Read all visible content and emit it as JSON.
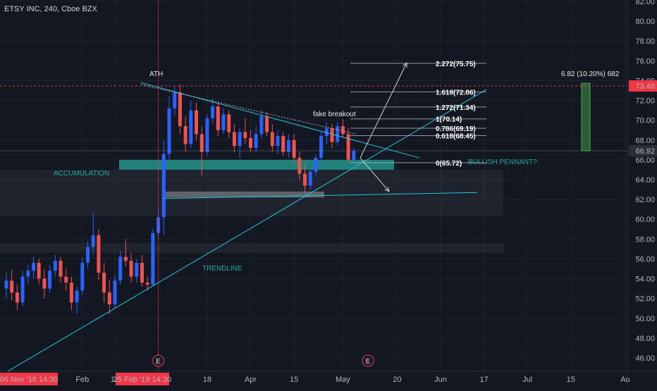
{
  "header": {
    "symbol_title": "ETSY INC, 240, Cboe BZX"
  },
  "colors": {
    "background": "#131722",
    "up_candle": "#2962ff",
    "down_candle": "#ef5350",
    "teal": "#26c6da",
    "zone_teal": "#26a69a",
    "zone_gray": "#787b86",
    "target_box": "#4caf50",
    "red_tag": "#f23645",
    "last_price_tag": "#2a2e39"
  },
  "chart_data": {
    "type": "candlestick",
    "y_axis": {
      "range": [
        45,
        82
      ],
      "ticks": [
        "82.00",
        "80.00",
        "78.00",
        "76.00",
        "74.00",
        "72.00",
        "70.00",
        "68.00",
        "66.00",
        "64.00",
        "62.00",
        "60.00",
        "58.00",
        "56.00",
        "54.00",
        "52.00",
        "50.00",
        "48.00",
        "46.00"
      ],
      "tick_values": [
        82,
        80,
        78,
        76,
        74,
        72,
        70,
        68,
        66,
        64,
        62,
        60,
        58,
        56,
        54,
        52,
        50,
        48,
        46
      ]
    },
    "x_axis": {
      "ticks": [
        "Feb",
        "18",
        "18",
        "Apr",
        "15",
        "May",
        "20",
        "Jun",
        "17",
        "Jul",
        "15",
        "Au"
      ],
      "tick_index": [
        14,
        20,
        37,
        45,
        53,
        62,
        72,
        80,
        88,
        96,
        104,
        114
      ],
      "start_tag": "06 Nov '18  14:30",
      "cursor_tag": "25 Feb '19  14:30"
    },
    "price_tags": {
      "top": {
        "label": "73.46",
        "value": 73.46
      },
      "last": {
        "label": "66.92",
        "value": 66.92
      }
    },
    "annotations": {
      "ath": "ATH",
      "fake_breakout": "fake breakout",
      "accumulation": "ACCUMULATION",
      "trendline": "TRENDLINE",
      "bullish_pennant": "BULLISH PENNANT?",
      "target_box_label": "6.82 (10.20%) 682",
      "earnings_marker": "E"
    },
    "fib_levels": [
      {
        "label": "2.272(75.75)",
        "value": 75.75
      },
      {
        "label": "1.618(72.86)",
        "value": 72.86
      },
      {
        "label": "1.272(71.34)",
        "value": 71.34
      },
      {
        "label": "1(70.14)",
        "value": 70.14
      },
      {
        "label": "0.786(69.19)",
        "value": 69.19
      },
      {
        "label": "0.618(68.45)",
        "value": 68.45
      },
      {
        "label": "0(65.72)",
        "value": 65.72
      }
    ],
    "target_box": {
      "from": 66.92,
      "to": 73.74
    },
    "candles_ohlc": [
      [
        53.0,
        54.6,
        52.0,
        53.8
      ],
      [
        53.8,
        54.9,
        51.8,
        52.6
      ],
      [
        52.6,
        53.4,
        50.8,
        51.6
      ],
      [
        51.6,
        54.8,
        51.2,
        54.2
      ],
      [
        54.2,
        55.4,
        53.4,
        54.8
      ],
      [
        54.8,
        56.2,
        54.0,
        55.6
      ],
      [
        55.6,
        56.0,
        53.4,
        54.0
      ],
      [
        54.0,
        55.0,
        52.0,
        53.0
      ],
      [
        53.0,
        55.4,
        52.6,
        54.8
      ],
      [
        54.8,
        56.4,
        54.2,
        55.8
      ],
      [
        55.8,
        56.2,
        53.6,
        54.2
      ],
      [
        54.2,
        55.0,
        52.8,
        53.6
      ],
      [
        53.6,
        54.2,
        50.8,
        51.6
      ],
      [
        51.6,
        53.2,
        50.4,
        52.8
      ],
      [
        52.8,
        56.2,
        52.4,
        55.6
      ],
      [
        55.6,
        57.8,
        55.0,
        57.2
      ],
      [
        57.2,
        60.6,
        56.4,
        58.4
      ],
      [
        58.4,
        59.0,
        53.8,
        54.6
      ],
      [
        54.6,
        55.6,
        51.6,
        52.6
      ],
      [
        52.6,
        53.8,
        50.4,
        51.4
      ],
      [
        51.4,
        54.4,
        51.0,
        53.8
      ],
      [
        53.8,
        56.8,
        53.4,
        56.2
      ],
      [
        56.2,
        58.0,
        55.2,
        55.8
      ],
      [
        55.8,
        56.6,
        53.6,
        54.2
      ],
      [
        54.2,
        56.0,
        53.6,
        55.6
      ],
      [
        55.6,
        56.4,
        53.2,
        53.6
      ],
      [
        53.6,
        54.2,
        52.8,
        53.4
      ],
      [
        53.4,
        59.0,
        53.2,
        58.6
      ],
      [
        58.6,
        61.0,
        58.0,
        60.2
      ],
      [
        60.2,
        68.0,
        58.4,
        66.6
      ],
      [
        66.6,
        72.4,
        66.0,
        71.2
      ],
      [
        71.2,
        73.4,
        70.4,
        72.8
      ],
      [
        72.8,
        73.6,
        68.6,
        69.4
      ],
      [
        69.4,
        70.4,
        66.8,
        67.6
      ],
      [
        67.6,
        72.0,
        67.2,
        71.0
      ],
      [
        71.0,
        71.8,
        68.0,
        68.6
      ],
      [
        68.6,
        69.4,
        64.4,
        66.8
      ],
      [
        66.8,
        70.6,
        66.4,
        70.2
      ],
      [
        70.2,
        72.2,
        69.6,
        71.4
      ],
      [
        71.4,
        71.8,
        68.4,
        69.0
      ],
      [
        69.0,
        71.2,
        68.6,
        70.6
      ],
      [
        70.6,
        71.0,
        68.2,
        68.8
      ],
      [
        68.8,
        69.6,
        66.8,
        67.4
      ],
      [
        67.4,
        69.2,
        66.2,
        68.8
      ],
      [
        68.8,
        70.2,
        67.6,
        68.2
      ],
      [
        68.2,
        69.0,
        66.8,
        67.2
      ],
      [
        67.2,
        69.4,
        66.8,
        68.6
      ],
      [
        68.6,
        71.0,
        68.2,
        70.4
      ],
      [
        70.4,
        70.8,
        68.4,
        68.8
      ],
      [
        68.8,
        69.6,
        66.8,
        67.4
      ],
      [
        67.4,
        69.0,
        66.6,
        68.4
      ],
      [
        68.4,
        68.8,
        66.4,
        66.8
      ],
      [
        66.8,
        68.6,
        66.2,
        68.0
      ],
      [
        68.0,
        68.6,
        65.6,
        66.2
      ],
      [
        66.2,
        66.8,
        64.0,
        64.6
      ],
      [
        64.6,
        65.6,
        62.6,
        63.4
      ],
      [
        63.4,
        65.2,
        63.0,
        64.8
      ],
      [
        64.8,
        66.6,
        64.4,
        66.2
      ],
      [
        66.2,
        68.8,
        65.8,
        68.4
      ],
      [
        68.4,
        69.8,
        67.6,
        69.2
      ],
      [
        69.2,
        69.6,
        67.2,
        67.8
      ],
      [
        67.8,
        69.8,
        67.4,
        69.4
      ],
      [
        69.4,
        70.1,
        68.2,
        68.6
      ],
      [
        68.6,
        69.2,
        65.7,
        66.0
      ],
      [
        66.0,
        67.2,
        65.8,
        66.9
      ]
    ]
  }
}
